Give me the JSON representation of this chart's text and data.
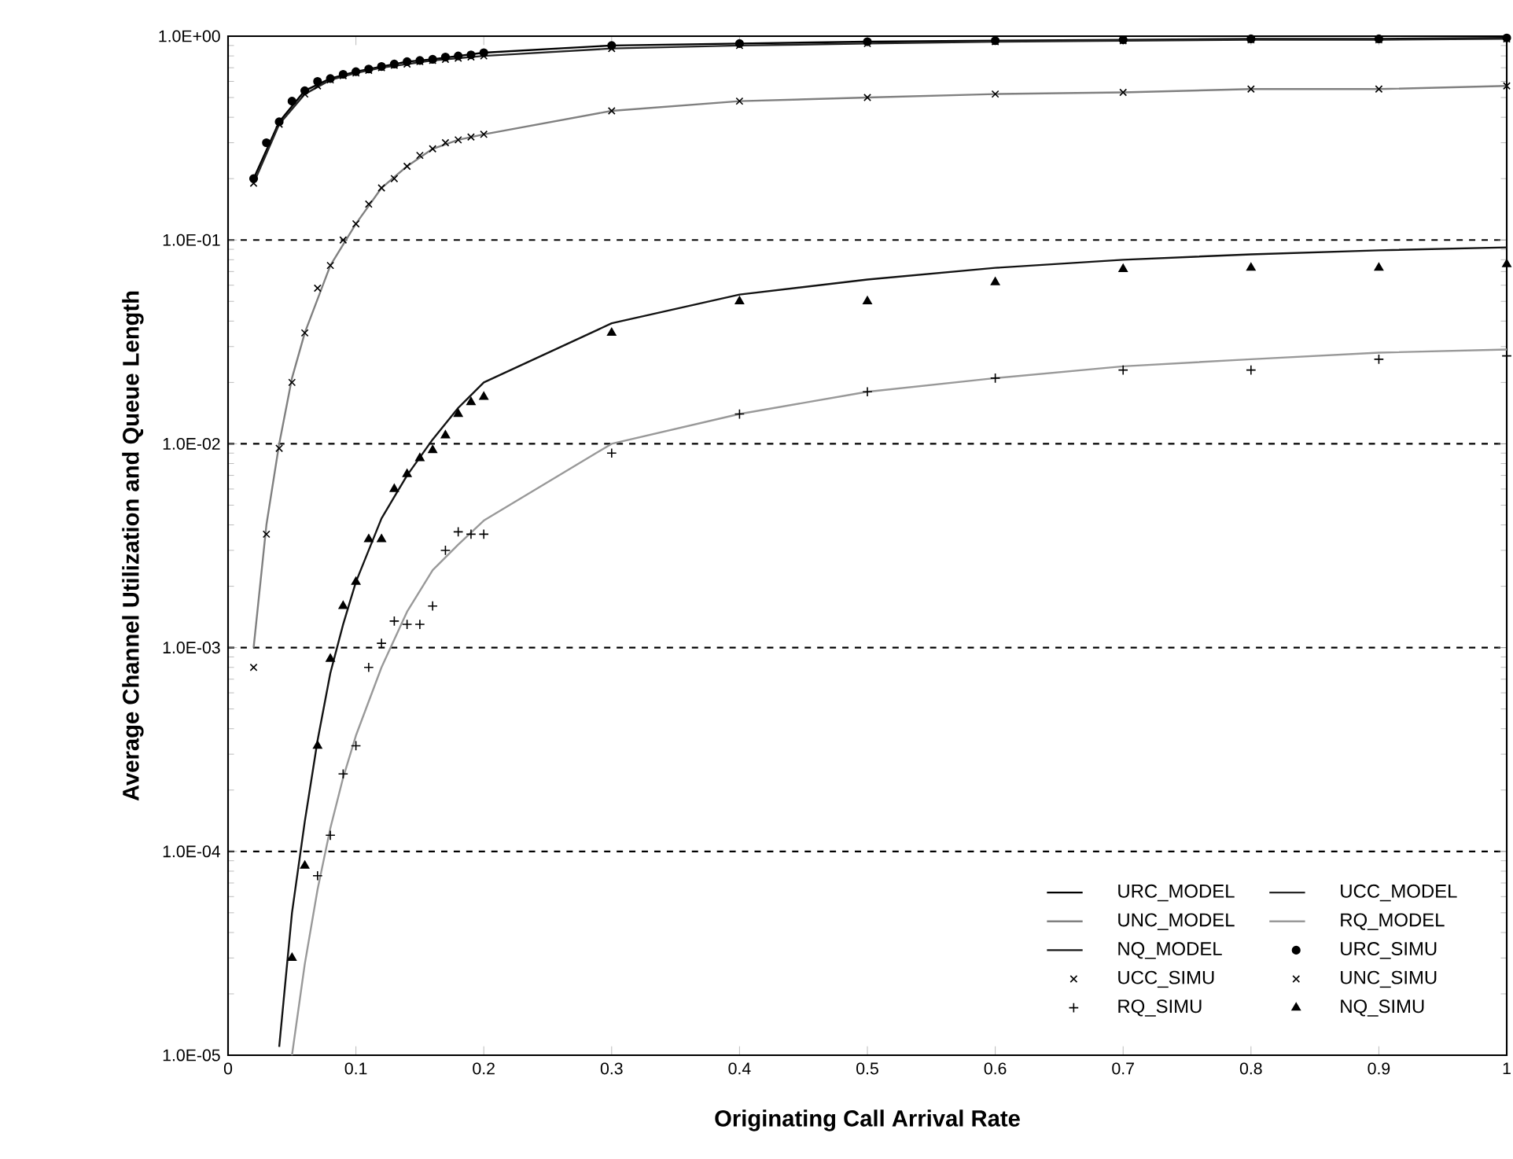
{
  "chart_data": {
    "type": "line",
    "xlabel": "Originating Call Arrival Rate",
    "ylabel": "Average Channel Utilization and Queue Length",
    "log": "y",
    "grid": "y",
    "legend": "bottom right",
    "xlim": [
      0,
      1
    ],
    "xticks": [
      0,
      0.1,
      0.2,
      0.3,
      0.4,
      0.5,
      0.6,
      0.7,
      0.8,
      0.9,
      1
    ],
    "ylim": [
      1e-05,
      1
    ],
    "yticks": [
      {
        "value": 1e-05,
        "label": "1.0E-05"
      },
      {
        "value": 0.0001,
        "label": "1.0E-04"
      },
      {
        "value": 0.001,
        "label": "1.0E-03"
      },
      {
        "value": 0.01,
        "label": "1.0E-02"
      },
      {
        "value": 0.1,
        "label": "1.0E-01"
      },
      {
        "value": 1,
        "label": "1.0E+00"
      }
    ],
    "series": [
      {
        "name": "URC_MODEL",
        "marker": "none",
        "line_style": "solid",
        "color": "#000000",
        "x": [
          0.02,
          0.04,
          0.06,
          0.08,
          0.1,
          0.12,
          0.14,
          0.16,
          0.18,
          0.2,
          0.3,
          0.4,
          0.5,
          0.6,
          0.7,
          0.8,
          0.9,
          1
        ],
        "values": [
          0.2,
          0.38,
          0.54,
          0.62,
          0.67,
          0.71,
          0.75,
          0.77,
          0.8,
          0.83,
          0.9,
          0.92,
          0.94,
          0.95,
          0.96,
          0.97,
          0.97,
          0.98
        ]
      },
      {
        "name": "UCC_MODEL",
        "marker": "none",
        "line_style": "solid",
        "color": "#262626",
        "x": [
          0.02,
          0.04,
          0.06,
          0.08,
          0.1,
          0.12,
          0.14,
          0.16,
          0.18,
          0.2,
          0.3,
          0.4,
          0.5,
          0.6,
          0.7,
          0.8,
          0.9,
          1
        ],
        "values": [
          0.19,
          0.37,
          0.52,
          0.61,
          0.66,
          0.7,
          0.73,
          0.76,
          0.78,
          0.8,
          0.87,
          0.9,
          0.92,
          0.94,
          0.95,
          0.96,
          0.96,
          0.97
        ]
      },
      {
        "name": "UNC_MODEL",
        "marker": "none",
        "line_style": "solid",
        "color": "#808080",
        "x": [
          0.02,
          0.03,
          0.04,
          0.05,
          0.06,
          0.08,
          0.1,
          0.12,
          0.14,
          0.16,
          0.18,
          0.2,
          0.3,
          0.4,
          0.5,
          0.6,
          0.7,
          0.8,
          0.9,
          1
        ],
        "values": [
          0.001,
          0.004,
          0.01,
          0.021,
          0.035,
          0.075,
          0.12,
          0.18,
          0.23,
          0.28,
          0.31,
          0.33,
          0.43,
          0.48,
          0.5,
          0.52,
          0.53,
          0.55,
          0.55,
          0.57
        ]
      },
      {
        "name": "RQ_MODEL",
        "marker": "none",
        "line_style": "solid",
        "color": "#999999",
        "x": [
          0.05,
          0.06,
          0.07,
          0.08,
          0.09,
          0.1,
          0.12,
          0.14,
          0.16,
          0.18,
          0.2,
          0.3,
          0.4,
          0.5,
          0.6,
          0.7,
          0.8,
          0.9,
          1
        ],
        "values": [
          1e-05,
          2.8e-05,
          6.5e-05,
          0.00013,
          0.00023,
          0.00037,
          0.0008,
          0.0015,
          0.0024,
          0.0032,
          0.0042,
          0.01,
          0.014,
          0.018,
          0.021,
          0.024,
          0.026,
          0.028,
          0.029
        ]
      },
      {
        "name": "NQ_MODEL",
        "marker": "none",
        "line_style": "solid",
        "color": "#131313",
        "x": [
          0.04,
          0.05,
          0.06,
          0.07,
          0.08,
          0.09,
          0.1,
          0.12,
          0.14,
          0.16,
          0.18,
          0.2,
          0.3,
          0.4,
          0.5,
          0.6,
          0.7,
          0.8,
          0.9,
          1
        ],
        "values": [
          1.1e-05,
          5e-05,
          0.00014,
          0.00035,
          0.00075,
          0.0013,
          0.0021,
          0.0043,
          0.007,
          0.0105,
          0.015,
          0.02,
          0.039,
          0.054,
          0.064,
          0.073,
          0.08,
          0.085,
          0.089,
          0.092
        ]
      },
      {
        "name": "URC_SIMU",
        "type": "scatter",
        "marker": "circle",
        "color": "#000000",
        "x": [
          0.02,
          0.03,
          0.04,
          0.05,
          0.06,
          0.07,
          0.08,
          0.09,
          0.1,
          0.11,
          0.12,
          0.13,
          0.14,
          0.15,
          0.16,
          0.17,
          0.18,
          0.19,
          0.2,
          0.3,
          0.4,
          0.5,
          0.6,
          0.7,
          0.8,
          0.9,
          1
        ],
        "values": [
          0.2,
          0.3,
          0.38,
          0.48,
          0.54,
          0.6,
          0.62,
          0.65,
          0.67,
          0.69,
          0.71,
          0.73,
          0.75,
          0.76,
          0.77,
          0.79,
          0.8,
          0.81,
          0.83,
          0.9,
          0.92,
          0.94,
          0.95,
          0.96,
          0.97,
          0.97,
          0.98
        ]
      },
      {
        "name": "UCC_SIMU",
        "type": "scatter",
        "marker": "cross",
        "color": "#000000",
        "x": [
          0.02,
          0.03,
          0.04,
          0.05,
          0.06,
          0.07,
          0.08,
          0.09,
          0.1,
          0.11,
          0.12,
          0.13,
          0.14,
          0.15,
          0.16,
          0.17,
          0.18,
          0.19,
          0.2,
          0.3,
          0.4,
          0.5,
          0.6,
          0.7,
          0.8,
          0.9,
          1
        ],
        "values": [
          0.19,
          null,
          0.37,
          null,
          0.52,
          0.57,
          0.61,
          0.64,
          0.66,
          0.68,
          0.7,
          0.72,
          0.73,
          0.75,
          0.76,
          0.77,
          0.78,
          0.79,
          0.8,
          0.87,
          0.9,
          0.92,
          0.94,
          0.95,
          0.96,
          0.96,
          0.97
        ]
      },
      {
        "name": "UNC_SIMU",
        "type": "scatter",
        "marker": "cross",
        "color": "#000000",
        "x": [
          0.02,
          0.03,
          0.04,
          0.05,
          0.06,
          0.07,
          0.08,
          0.09,
          0.1,
          0.11,
          0.12,
          0.13,
          0.14,
          0.15,
          0.16,
          0.17,
          0.18,
          0.19,
          0.2,
          0.3,
          0.4,
          0.5,
          0.6,
          0.7,
          0.8,
          0.9,
          1
        ],
        "values": [
          0.0008,
          0.0036,
          0.0095,
          0.02,
          0.035,
          0.058,
          0.075,
          0.1,
          0.12,
          0.15,
          0.18,
          0.2,
          0.23,
          0.26,
          0.28,
          0.3,
          0.31,
          0.32,
          0.33,
          0.43,
          0.48,
          0.5,
          0.52,
          0.53,
          0.55,
          0.55,
          0.57
        ]
      },
      {
        "name": "RQ_SIMU",
        "type": "scatter",
        "marker": "plus",
        "color": "#000000",
        "x": [
          0.07,
          0.08,
          0.09,
          0.1,
          0.11,
          0.12,
          0.13,
          0.14,
          0.15,
          0.16,
          0.17,
          0.18,
          0.19,
          0.2,
          0.3,
          0.4,
          0.5,
          0.6,
          0.7,
          0.8,
          0.9,
          1
        ],
        "values": [
          7.6e-05,
          0.00012,
          0.00024,
          0.00033,
          0.0008,
          0.00105,
          0.00135,
          0.0013,
          0.0013,
          0.0016,
          0.003,
          0.0037,
          0.0036,
          0.0036,
          0.009,
          0.014,
          0.018,
          0.021,
          0.023,
          0.023,
          0.026,
          0.027
        ]
      },
      {
        "name": "NQ_SIMU",
        "type": "scatter",
        "marker": "triangle",
        "color": "#000000",
        "x": [
          0.05,
          0.06,
          0.07,
          0.08,
          0.09,
          0.1,
          0.11,
          0.12,
          0.13,
          0.14,
          0.15,
          0.16,
          0.17,
          0.18,
          0.19,
          0.2,
          0.3,
          0.4,
          0.5,
          0.6,
          0.7,
          0.8,
          0.9,
          1
        ],
        "values": [
          3e-05,
          8.5e-05,
          0.00033,
          0.00088,
          0.0016,
          0.0021,
          0.0034,
          0.0034,
          0.006,
          0.0071,
          0.0085,
          0.0093,
          0.011,
          0.014,
          0.016,
          0.017,
          0.035,
          0.05,
          0.05,
          0.062,
          0.072,
          0.073,
          0.073,
          0.076
        ]
      }
    ]
  }
}
